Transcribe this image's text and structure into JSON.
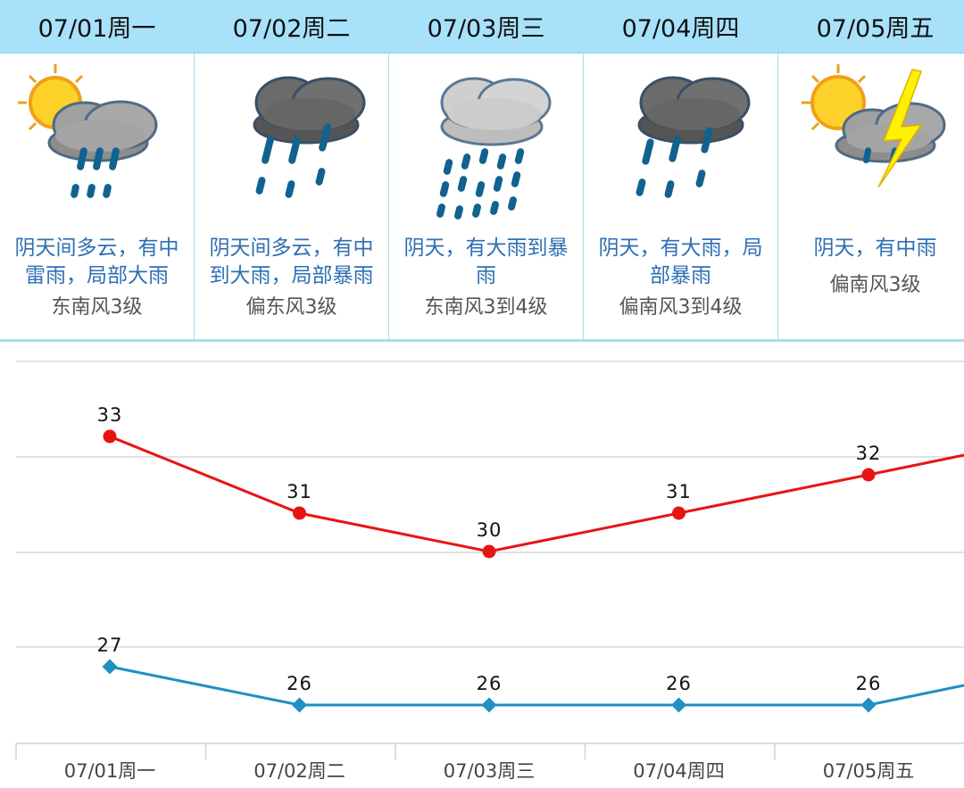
{
  "days": [
    {
      "date": "07/01周一",
      "icon": "sun-cloud-rain-icon",
      "desc": "阴天间多云，有中雷雨，局部大雨",
      "wind": "东南风3级"
    },
    {
      "date": "07/02周二",
      "icon": "dark-cloud-rain-icon",
      "desc": "阴天间多云，有中到大雨，局部暴雨",
      "wind": "偏东风3级"
    },
    {
      "date": "07/03周三",
      "icon": "cloud-heavy-rain-icon",
      "desc": "阴天，有大雨到暴雨",
      "wind": "东南风3到4级"
    },
    {
      "date": "07/04周四",
      "icon": "dark-cloud-rain-icon",
      "desc": "阴天，有大雨，局部暴雨",
      "wind": "偏南风3到4级"
    },
    {
      "date": "07/05周五",
      "icon": "sun-cloud-thunder-icon",
      "desc": "阴天，有中雨",
      "wind": "偏南风3级"
    }
  ],
  "colors": {
    "high": "#e81414",
    "low": "#1f8fc4",
    "header_bg": "#a8e1fa",
    "desc": "#2f6fb4"
  },
  "chart_data": {
    "type": "line",
    "categories": [
      "07/01周一",
      "07/02周二",
      "07/03周三",
      "07/04周四",
      "07/05周五"
    ],
    "series": [
      {
        "values": [
          33,
          31,
          30,
          31,
          32
        ],
        "color": "#e81414"
      },
      {
        "values": [
          27,
          26,
          26,
          26,
          26
        ],
        "color": "#1f8fc4"
      }
    ],
    "grid": true,
    "ylim": [
      24,
      36
    ]
  }
}
